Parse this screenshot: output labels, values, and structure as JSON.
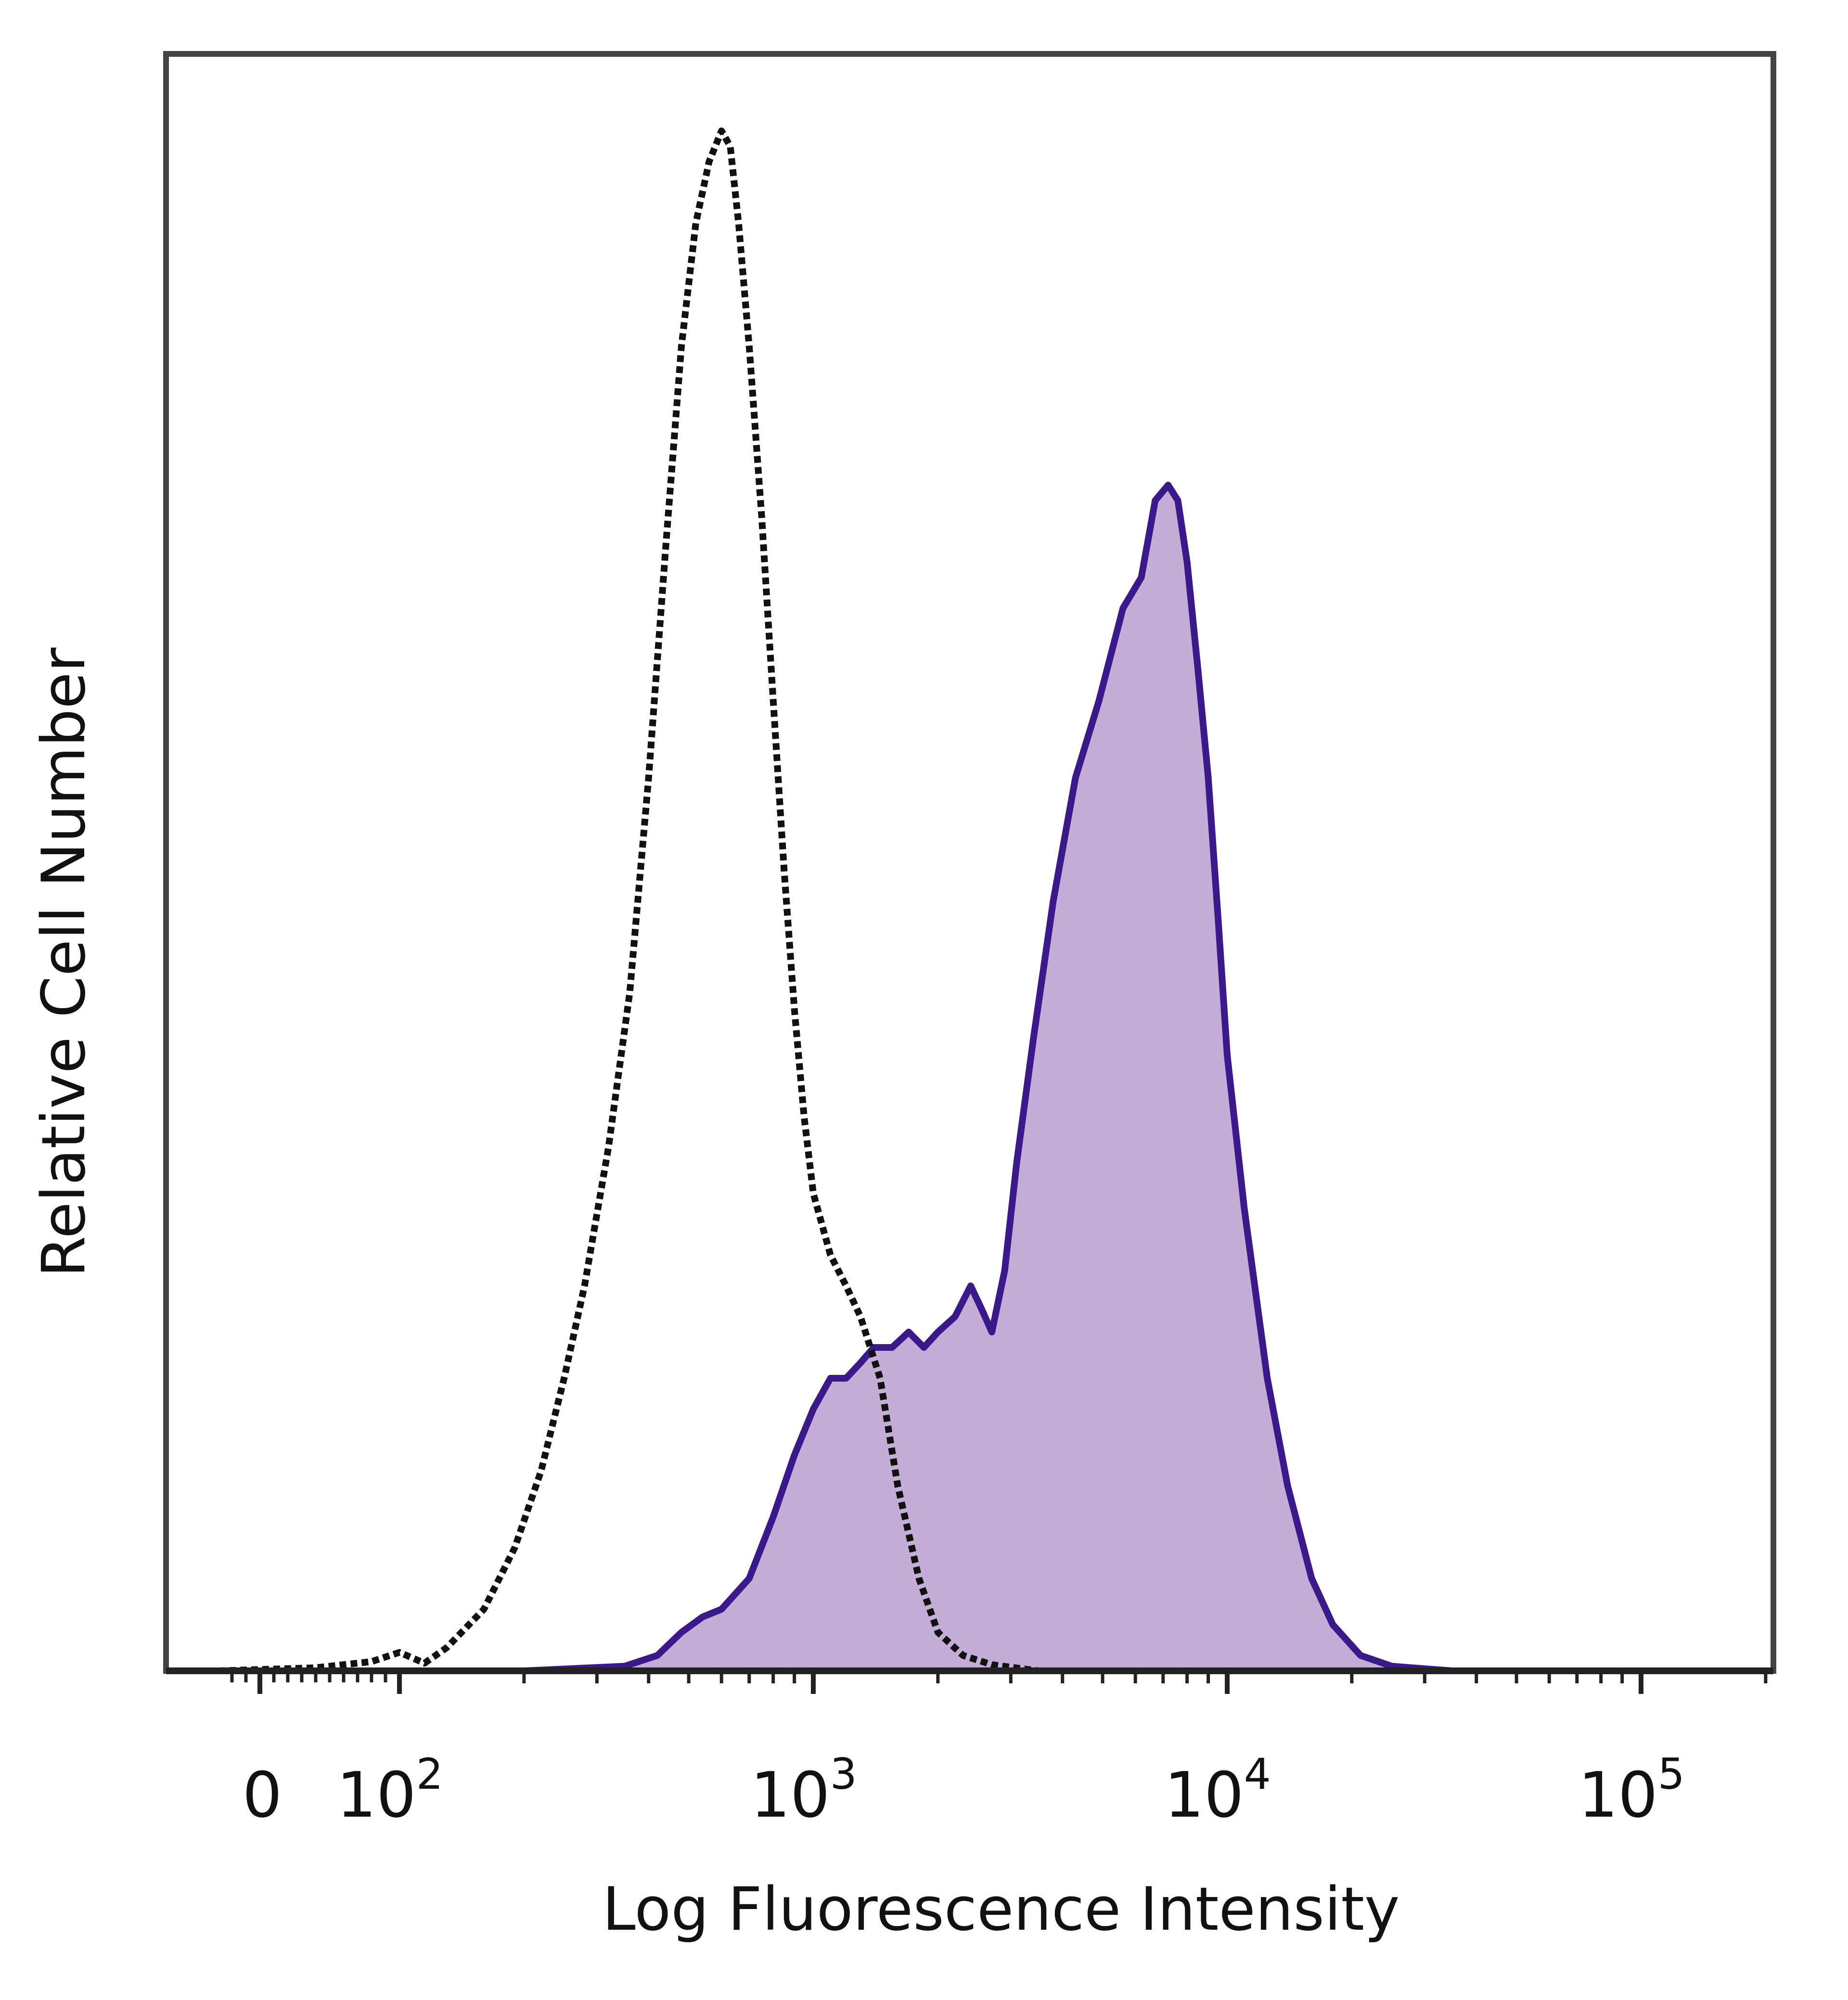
{
  "chart_data": {
    "type": "area",
    "title": "",
    "xlabel": "Log Fluorescence Intensity",
    "ylabel": "Relative Cell Number",
    "x_scale": "biexponential (log above 10^2)",
    "xlim": [
      -30,
      200000
    ],
    "ylim": [
      0,
      105
    ],
    "x_tick_labels": [
      {
        "value": 0,
        "base": "0",
        "exp": ""
      },
      {
        "value": 100,
        "base": "10",
        "exp": "2"
      },
      {
        "value": 1000,
        "base": "10",
        "exp": "3"
      },
      {
        "value": 10000,
        "base": "10",
        "exp": "4"
      },
      {
        "value": 100000,
        "base": "10",
        "exp": "5"
      }
    ],
    "grid": false,
    "legend": "none",
    "colors": {
      "stained_fill": "#c4add6",
      "stained_line": "#3a1a8a",
      "control_line": "#111111",
      "frame": "#444444"
    },
    "series": [
      {
        "role": "isotype-control",
        "style": "dotted-black-line",
        "x": [
          -30,
          40,
          80,
          100,
          115,
          130,
          160,
          190,
          220,
          250,
          280,
          320,
          360,
          400,
          440,
          480,
          520,
          560,
          600,
          630,
          660,
          700,
          750,
          800,
          850,
          900,
          950,
          1000,
          1100,
          1200,
          1300,
          1450,
          1600,
          1800,
          2000,
          2300,
          2700,
          3500,
          6000,
          20000,
          200000
        ],
        "y": [
          0,
          0.2,
          0.6,
          1.2,
          0.5,
          1.5,
          4,
          8,
          13,
          19,
          25,
          34,
          44,
          58,
          73,
          86,
          94,
          98,
          100,
          99,
          94,
          86,
          75,
          63,
          52,
          43,
          36,
          31,
          27,
          25,
          23,
          19,
          12,
          6,
          2.5,
          1,
          0.4,
          0,
          0,
          0,
          0
        ]
      },
      {
        "role": "stained",
        "style": "filled-purple",
        "x": [
          -30,
          200,
          350,
          420,
          480,
          540,
          600,
          700,
          800,
          900,
          1000,
          1100,
          1200,
          1300,
          1400,
          1550,
          1700,
          1850,
          2000,
          2200,
          2400,
          2550,
          2700,
          2900,
          3100,
          3400,
          3800,
          4300,
          4900,
          5600,
          6200,
          6700,
          7200,
          7600,
          8000,
          8500,
          9000,
          9500,
          10000,
          11000,
          12500,
          14000,
          16000,
          18000,
          21000,
          25000,
          35000,
          200000
        ],
        "y": [
          0,
          0,
          0.3,
          1,
          2.5,
          3.5,
          4,
          6,
          10,
          14,
          17,
          19,
          19,
          20,
          21,
          21,
          22,
          21,
          22,
          23,
          25,
          23.5,
          22,
          26,
          33,
          41,
          50,
          58,
          63,
          69,
          71,
          76,
          77,
          76,
          72,
          65,
          58,
          49,
          40,
          30,
          19,
          12,
          6,
          3,
          1,
          0.3,
          0,
          0
        ]
      }
    ]
  }
}
